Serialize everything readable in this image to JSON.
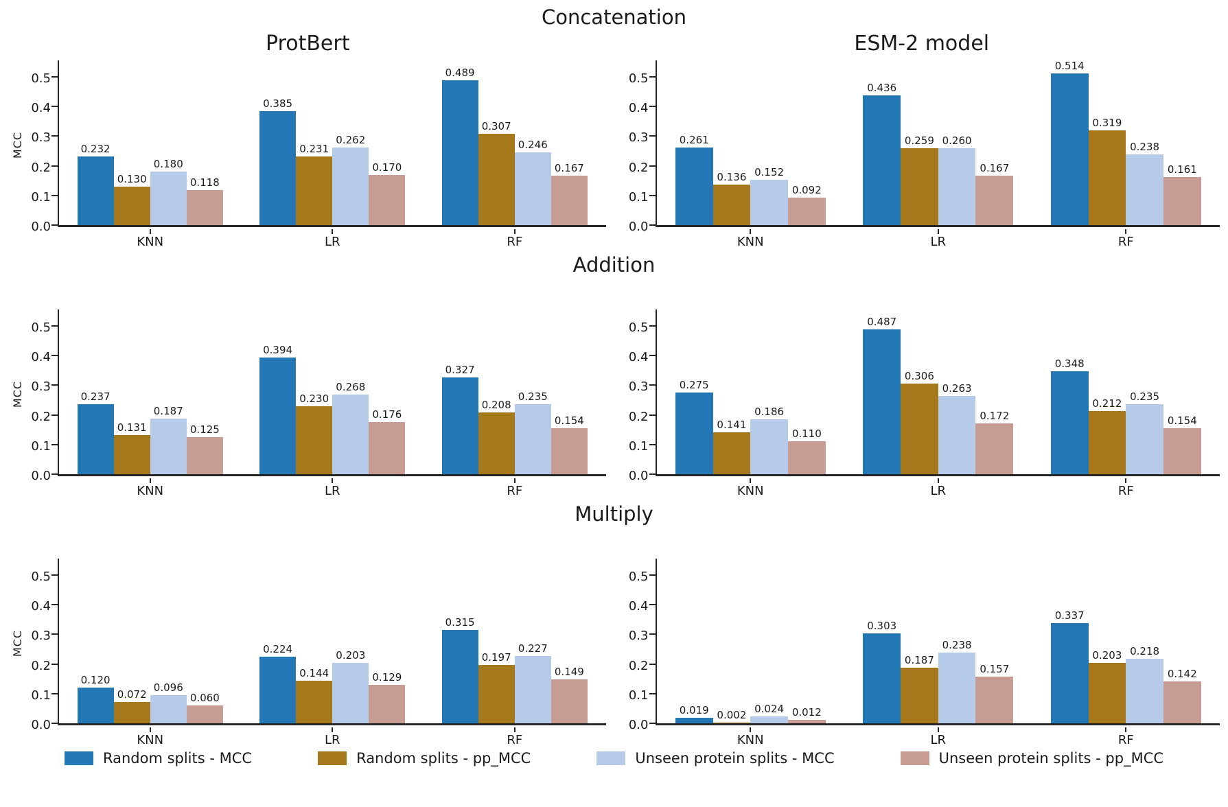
{
  "figure": {
    "background": "#ffffff",
    "sections": [
      {
        "title": "Concatenation"
      },
      {
        "title": "Addition"
      },
      {
        "title": "Multiply"
      }
    ]
  },
  "axis": {
    "ylabel": "MCC",
    "yticks": [
      "0.0",
      "0.1",
      "0.2",
      "0.3",
      "0.4",
      "0.5"
    ],
    "ylim": [
      0,
      0.555
    ],
    "categories": [
      "KNN",
      "LR",
      "RF"
    ],
    "spine_color": "#262626"
  },
  "palette": {
    "random_mcc": "#2277b4",
    "random_pp_mcc": "#a5781c",
    "unseen_mcc": "#b5cbe9",
    "unseen_pp_mcc": "#c69c93"
  },
  "legend": {
    "entries": [
      {
        "label": "Random splits - MCC",
        "color": "#2277b4"
      },
      {
        "label": "Random splits - pp_MCC",
        "color": "#a5781c"
      },
      {
        "label": "Unseen protein splits - MCC",
        "color": "#b5cbe9"
      },
      {
        "label": "Unseen protein splits - pp_MCC",
        "color": "#c69c93"
      }
    ]
  },
  "chart_data": [
    {
      "type": "bar",
      "section": "Concatenation",
      "title": "ProtBert",
      "ylabel": "MCC",
      "categories": [
        "KNN",
        "LR",
        "RF"
      ],
      "ylim": [
        0,
        0.555
      ],
      "grid": false,
      "series": [
        {
          "name": "Random splits - MCC",
          "color": "#2277b4",
          "values": [
            0.232,
            0.385,
            0.489
          ]
        },
        {
          "name": "Random splits - pp_MCC",
          "color": "#a5781c",
          "values": [
            0.13,
            0.231,
            0.307
          ]
        },
        {
          "name": "Unseen protein splits - MCC",
          "color": "#b5cbe9",
          "values": [
            0.18,
            0.262,
            0.246
          ]
        },
        {
          "name": "Unseen protein splits - pp_MCC",
          "color": "#c69c93",
          "values": [
            0.118,
            0.17,
            0.167
          ]
        }
      ]
    },
    {
      "type": "bar",
      "section": "Concatenation",
      "title": "ESM-2 model",
      "ylabel": "",
      "categories": [
        "KNN",
        "LR",
        "RF"
      ],
      "ylim": [
        0,
        0.555
      ],
      "grid": false,
      "series": [
        {
          "name": "Random splits - MCC",
          "color": "#2277b4",
          "values": [
            0.261,
            0.436,
            0.514
          ]
        },
        {
          "name": "Random splits - pp_MCC",
          "color": "#a5781c",
          "values": [
            0.136,
            0.259,
            0.319
          ]
        },
        {
          "name": "Unseen protein splits - MCC",
          "color": "#b5cbe9",
          "values": [
            0.152,
            0.26,
            0.238
          ]
        },
        {
          "name": "Unseen protein splits - pp_MCC",
          "color": "#c69c93",
          "values": [
            0.092,
            0.167,
            0.161
          ]
        }
      ]
    },
    {
      "type": "bar",
      "section": "Addition",
      "title": "",
      "ylabel": "MCC",
      "categories": [
        "KNN",
        "LR",
        "RF"
      ],
      "ylim": [
        0,
        0.555
      ],
      "grid": false,
      "series": [
        {
          "name": "Random splits - MCC",
          "color": "#2277b4",
          "values": [
            0.237,
            0.394,
            0.327
          ]
        },
        {
          "name": "Random splits - pp_MCC",
          "color": "#a5781c",
          "values": [
            0.131,
            0.23,
            0.208
          ]
        },
        {
          "name": "Unseen protein splits - MCC",
          "color": "#b5cbe9",
          "values": [
            0.187,
            0.268,
            0.235
          ]
        },
        {
          "name": "Unseen protein splits - pp_MCC",
          "color": "#c69c93",
          "values": [
            0.125,
            0.176,
            0.154
          ]
        }
      ]
    },
    {
      "type": "bar",
      "section": "Addition",
      "title": "",
      "ylabel": "",
      "categories": [
        "KNN",
        "LR",
        "RF"
      ],
      "ylim": [
        0,
        0.555
      ],
      "grid": false,
      "series": [
        {
          "name": "Random splits - MCC",
          "color": "#2277b4",
          "values": [
            0.275,
            0.487,
            0.348
          ]
        },
        {
          "name": "Random splits - pp_MCC",
          "color": "#a5781c",
          "values": [
            0.141,
            0.306,
            0.212
          ]
        },
        {
          "name": "Unseen protein splits - MCC",
          "color": "#b5cbe9",
          "values": [
            0.186,
            0.263,
            0.235
          ]
        },
        {
          "name": "Unseen protein splits - pp_MCC",
          "color": "#c69c93",
          "values": [
            0.11,
            0.172,
            0.154
          ]
        }
      ]
    },
    {
      "type": "bar",
      "section": "Multiply",
      "title": "",
      "ylabel": "MCC",
      "categories": [
        "KNN",
        "LR",
        "RF"
      ],
      "ylim": [
        0,
        0.555
      ],
      "grid": false,
      "series": [
        {
          "name": "Random splits - MCC",
          "color": "#2277b4",
          "values": [
            0.12,
            0.224,
            0.315
          ]
        },
        {
          "name": "Random splits - pp_MCC",
          "color": "#a5781c",
          "values": [
            0.072,
            0.144,
            0.197
          ]
        },
        {
          "name": "Unseen protein splits - MCC",
          "color": "#b5cbe9",
          "values": [
            0.096,
            0.203,
            0.227
          ]
        },
        {
          "name": "Unseen protein splits - pp_MCC",
          "color": "#c69c93",
          "values": [
            0.06,
            0.129,
            0.149
          ]
        }
      ]
    },
    {
      "type": "bar",
      "section": "Multiply",
      "title": "",
      "ylabel": "",
      "categories": [
        "KNN",
        "LR",
        "RF"
      ],
      "ylim": [
        0,
        0.555
      ],
      "grid": false,
      "series": [
        {
          "name": "Random splits - MCC",
          "color": "#2277b4",
          "values": [
            0.019,
            0.303,
            0.337
          ]
        },
        {
          "name": "Random splits - pp_MCC",
          "color": "#a5781c",
          "values": [
            0.002,
            0.187,
            0.203
          ]
        },
        {
          "name": "Unseen protein splits - MCC",
          "color": "#b5cbe9",
          "values": [
            0.024,
            0.238,
            0.218
          ]
        },
        {
          "name": "Unseen protein splits - pp_MCC",
          "color": "#c69c93",
          "values": [
            0.012,
            0.157,
            0.142
          ]
        }
      ]
    }
  ]
}
